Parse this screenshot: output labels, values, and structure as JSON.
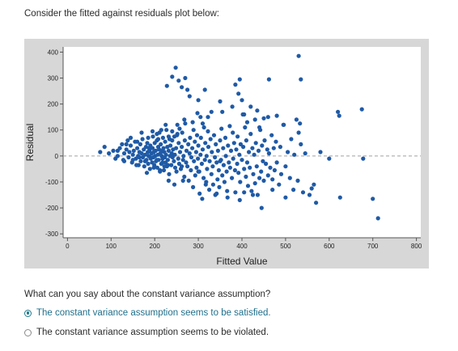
{
  "prompt_text": "Consider the fitted against residuals plot below:",
  "question_text": "What can you say about the constant variance assumption?",
  "options": [
    {
      "label": "The constant variance assumption seems to be satisfied.",
      "selected": true
    },
    {
      "label": "The constant variance assumption seems to be violated.",
      "selected": false
    }
  ],
  "colors": {
    "point": "#1f5aa6",
    "frame": "#d7d7d7",
    "plot_bg": "#ffffff",
    "ref_line": "#a0a0a0",
    "selected": "#1f6f8b"
  },
  "chart_data": {
    "type": "scatter",
    "title": "",
    "xlabel": "Fitted Value",
    "ylabel": "Residual",
    "xlim": [
      -10,
      810
    ],
    "ylim": [
      -315,
      420
    ],
    "xticks": [
      0,
      100,
      200,
      300,
      400,
      500,
      600,
      700,
      800
    ],
    "yticks": [
      400,
      300,
      200,
      100,
      0,
      -100,
      -200,
      -300
    ],
    "reference_line": 0,
    "grid": false,
    "legend": "none",
    "points": [
      [
        75,
        15
      ],
      [
        85,
        35
      ],
      [
        95,
        10
      ],
      [
        105,
        20
      ],
      [
        110,
        -10
      ],
      [
        115,
        0
      ],
      [
        120,
        30
      ],
      [
        125,
        45
      ],
      [
        128,
        -15
      ],
      [
        130,
        10
      ],
      [
        135,
        25
      ],
      [
        138,
        60
      ],
      [
        140,
        -5
      ],
      [
        142,
        15
      ],
      [
        145,
        40
      ],
      [
        148,
        -25
      ],
      [
        150,
        5
      ],
      [
        152,
        20
      ],
      [
        155,
        55
      ],
      [
        157,
        -10
      ],
      [
        160,
        30
      ],
      [
        162,
        0
      ],
      [
        163,
        -35
      ],
      [
        165,
        15
      ],
      [
        167,
        45
      ],
      [
        168,
        -20
      ],
      [
        170,
        10
      ],
      [
        172,
        65
      ],
      [
        173,
        -5
      ],
      [
        175,
        25
      ],
      [
        176,
        -40
      ],
      [
        178,
        5
      ],
      [
        180,
        35
      ],
      [
        181,
        -15
      ],
      [
        183,
        50
      ],
      [
        184,
        15
      ],
      [
        185,
        -30
      ],
      [
        186,
        0
      ],
      [
        188,
        20
      ],
      [
        189,
        -50
      ],
      [
        190,
        40
      ],
      [
        191,
        -10
      ],
      [
        193,
        10
      ],
      [
        194,
        -25
      ],
      [
        195,
        30
      ],
      [
        196,
        75
      ],
      [
        197,
        -5
      ],
      [
        198,
        15
      ],
      [
        199,
        -35
      ],
      [
        200,
        50
      ],
      [
        201,
        0
      ],
      [
        202,
        20
      ],
      [
        203,
        -20
      ],
      [
        205,
        60
      ],
      [
        206,
        -45
      ],
      [
        207,
        5
      ],
      [
        208,
        35
      ],
      [
        209,
        -15
      ],
      [
        210,
        25
      ],
      [
        211,
        90
      ],
      [
        212,
        -60
      ],
      [
        213,
        10
      ],
      [
        214,
        45
      ],
      [
        215,
        -30
      ],
      [
        216,
        0
      ],
      [
        217,
        20
      ],
      [
        218,
        -10
      ],
      [
        219,
        70
      ],
      [
        220,
        30
      ],
      [
        221,
        -55
      ],
      [
        222,
        15
      ],
      [
        223,
        -5
      ],
      [
        224,
        55
      ],
      [
        225,
        -25
      ],
      [
        226,
        5
      ],
      [
        227,
        100
      ],
      [
        228,
        -40
      ],
      [
        229,
        35
      ],
      [
        230,
        -15
      ],
      [
        232,
        20
      ],
      [
        233,
        -70
      ],
      [
        234,
        65
      ],
      [
        235,
        0
      ],
      [
        236,
        40
      ],
      [
        238,
        -35
      ],
      [
        239,
        10
      ],
      [
        240,
        95
      ],
      [
        241,
        -5
      ],
      [
        242,
        25
      ],
      [
        244,
        -20
      ],
      [
        245,
        75
      ],
      [
        246,
        5
      ],
      [
        247,
        -45
      ],
      [
        249,
        30
      ],
      [
        250,
        -60
      ],
      [
        251,
        80
      ],
      [
        252,
        120
      ],
      [
        254,
        -10
      ],
      [
        255,
        50
      ],
      [
        256,
        -30
      ],
      [
        257,
        105
      ],
      [
        258,
        15
      ],
      [
        260,
        -50
      ],
      [
        262,
        35
      ],
      [
        263,
        90
      ],
      [
        265,
        -15
      ],
      [
        266,
        0
      ],
      [
        268,
        -80
      ],
      [
        269,
        60
      ],
      [
        270,
        125
      ],
      [
        272,
        -25
      ],
      [
        273,
        20
      ],
      [
        275,
        -40
      ],
      [
        277,
        45
      ],
      [
        278,
        -95
      ],
      [
        280,
        10
      ],
      [
        281,
        70
      ],
      [
        283,
        -55
      ],
      [
        284,
        -5
      ],
      [
        286,
        30
      ],
      [
        288,
        -120
      ],
      [
        289,
        100
      ],
      [
        290,
        -20
      ],
      [
        292,
        55
      ],
      [
        293,
        -75
      ],
      [
        295,
        15
      ],
      [
        296,
        -45
      ],
      [
        297,
        80
      ],
      [
        299,
        -10
      ],
      [
        300,
        40
      ],
      [
        302,
        -60
      ],
      [
        303,
        -145
      ],
      [
        305,
        5
      ],
      [
        306,
        70
      ],
      [
        308,
        -30
      ],
      [
        309,
        -165
      ],
      [
        310,
        25
      ],
      [
        312,
        -85
      ],
      [
        313,
        110
      ],
      [
        315,
        -15
      ],
      [
        316,
        50
      ],
      [
        318,
        -100
      ],
      [
        319,
        0
      ],
      [
        320,
        -50
      ],
      [
        322,
        95
      ],
      [
        323,
        35
      ],
      [
        325,
        -130
      ],
      [
        326,
        -20
      ],
      [
        328,
        65
      ],
      [
        330,
        -70
      ],
      [
        331,
        15
      ],
      [
        333,
        -40
      ],
      [
        334,
        -110
      ],
      [
        336,
        80
      ],
      [
        338,
        -5
      ],
      [
        339,
        -150
      ],
      [
        340,
        45
      ],
      [
        342,
        -25
      ],
      [
        344,
        -90
      ],
      [
        345,
        20
      ],
      [
        347,
        -55
      ],
      [
        348,
        -120
      ],
      [
        350,
        60
      ],
      [
        352,
        -15
      ],
      [
        353,
        105
      ],
      [
        355,
        -75
      ],
      [
        357,
        30
      ],
      [
        358,
        -35
      ],
      [
        360,
        -100
      ],
      [
        362,
        70
      ],
      [
        363,
        0
      ],
      [
        365,
        -60
      ],
      [
        366,
        -135
      ],
      [
        368,
        40
      ],
      [
        370,
        -25
      ],
      [
        372,
        115
      ],
      [
        373,
        -45
      ],
      [
        375,
        20
      ],
      [
        377,
        -85
      ],
      [
        379,
        90
      ],
      [
        380,
        -10
      ],
      [
        382,
        50
      ],
      [
        384,
        -55
      ],
      [
        385,
        -140
      ],
      [
        387,
        25
      ],
      [
        389,
        -30
      ],
      [
        390,
        75
      ],
      [
        392,
        -65
      ],
      [
        394,
        5
      ],
      [
        396,
        -100
      ],
      [
        397,
        45
      ],
      [
        400,
        -15
      ],
      [
        402,
        160
      ],
      [
        403,
        35
      ],
      [
        405,
        -50
      ],
      [
        407,
        110
      ],
      [
        409,
        -80
      ],
      [
        410,
        60
      ],
      [
        412,
        -25
      ],
      [
        414,
        -115
      ],
      [
        416,
        15
      ],
      [
        418,
        -45
      ],
      [
        420,
        85
      ],
      [
        422,
        -135
      ],
      [
        424,
        30
      ],
      [
        426,
        -70
      ],
      [
        428,
        5
      ],
      [
        430,
        -105
      ],
      [
        432,
        50
      ],
      [
        434,
        -40
      ],
      [
        436,
        -150
      ],
      [
        438,
        20
      ],
      [
        440,
        -85
      ],
      [
        442,
        100
      ],
      [
        444,
        -60
      ],
      [
        446,
        40
      ],
      [
        448,
        -20
      ],
      [
        450,
        -95
      ],
      [
        452,
        60
      ],
      [
        455,
        -30
      ],
      [
        458,
        25
      ],
      [
        460,
        -75
      ],
      [
        462,
        10
      ],
      [
        465,
        -45
      ],
      [
        468,
        80
      ],
      [
        470,
        -90
      ],
      [
        473,
        30
      ],
      [
        475,
        -55
      ],
      [
        478,
        55
      ],
      [
        480,
        -25
      ],
      [
        485,
        -110
      ],
      [
        488,
        35
      ],
      [
        490,
        -70
      ],
      [
        495,
        120
      ],
      [
        500,
        -40
      ],
      [
        505,
        15
      ],
      [
        510,
        -85
      ],
      [
        513,
        65
      ],
      [
        518,
        -130
      ],
      [
        520,
        5
      ],
      [
        525,
        140
      ],
      [
        528,
        -95
      ],
      [
        530,
        90
      ],
      [
        533,
        125
      ],
      [
        535,
        45
      ],
      [
        540,
        -140
      ],
      [
        545,
        10
      ],
      [
        555,
        -150
      ],
      [
        560,
        -125
      ],
      [
        570,
        -180
      ],
      [
        580,
        15
      ],
      [
        600,
        -10
      ],
      [
        620,
        170
      ],
      [
        623,
        155
      ],
      [
        625,
        -160
      ],
      [
        675,
        180
      ],
      [
        678,
        -10
      ],
      [
        700,
        -165
      ],
      [
        712,
        -240
      ],
      [
        228,
        270
      ],
      [
        240,
        305
      ],
      [
        248,
        340
      ],
      [
        255,
        290
      ],
      [
        262,
        265
      ],
      [
        270,
        300
      ],
      [
        275,
        255
      ],
      [
        280,
        230
      ],
      [
        300,
        215
      ],
      [
        315,
        255
      ],
      [
        350,
        210
      ],
      [
        385,
        275
      ],
      [
        395,
        295
      ],
      [
        400,
        215
      ],
      [
        420,
        190
      ],
      [
        430,
        140
      ],
      [
        435,
        175
      ],
      [
        450,
        145
      ],
      [
        462,
        295
      ],
      [
        480,
        155
      ],
      [
        496,
        120
      ],
      [
        460,
        150
      ],
      [
        440,
        110
      ],
      [
        530,
        385
      ],
      [
        535,
        295
      ],
      [
        392,
        240
      ],
      [
        405,
        160
      ],
      [
        412,
        130
      ],
      [
        378,
        190
      ],
      [
        355,
        170
      ],
      [
        330,
        170
      ],
      [
        322,
        150
      ],
      [
        305,
        150
      ],
      [
        298,
        165
      ],
      [
        268,
        140
      ],
      [
        310,
        125
      ],
      [
        287,
        130
      ],
      [
        225,
        120
      ],
      [
        252,
        85
      ],
      [
        215,
        100
      ],
      [
        205,
        85
      ],
      [
        185,
        70
      ],
      [
        170,
        90
      ],
      [
        240,
        60
      ],
      [
        232,
        75
      ],
      [
        145,
        70
      ],
      [
        135,
        45
      ],
      [
        160,
        55
      ],
      [
        195,
        95
      ],
      [
        208,
        65
      ],
      [
        350,
        -20
      ],
      [
        405,
        -140
      ],
      [
        300,
        -60
      ],
      [
        245,
        -110
      ],
      [
        232,
        -95
      ],
      [
        262,
        -40
      ],
      [
        182,
        -65
      ],
      [
        198,
        -45
      ],
      [
        158,
        -35
      ],
      [
        130,
        -20
      ],
      [
        115,
        20
      ],
      [
        212,
        -55
      ],
      [
        222,
        -40
      ],
      [
        265,
        -95
      ],
      [
        317,
        -110
      ],
      [
        342,
        -145
      ],
      [
        367,
        -160
      ],
      [
        395,
        -170
      ],
      [
        425,
        -150
      ],
      [
        445,
        -200
      ],
      [
        470,
        -130
      ],
      [
        500,
        -160
      ],
      [
        565,
        -110
      ],
      [
        190,
        -5
      ],
      [
        205,
        -15
      ],
      [
        218,
        -25
      ],
      [
        230,
        -35
      ],
      [
        150,
        -15
      ],
      [
        165,
        -5
      ],
      [
        178,
        -20
      ],
      [
        187,
        30
      ]
    ]
  }
}
